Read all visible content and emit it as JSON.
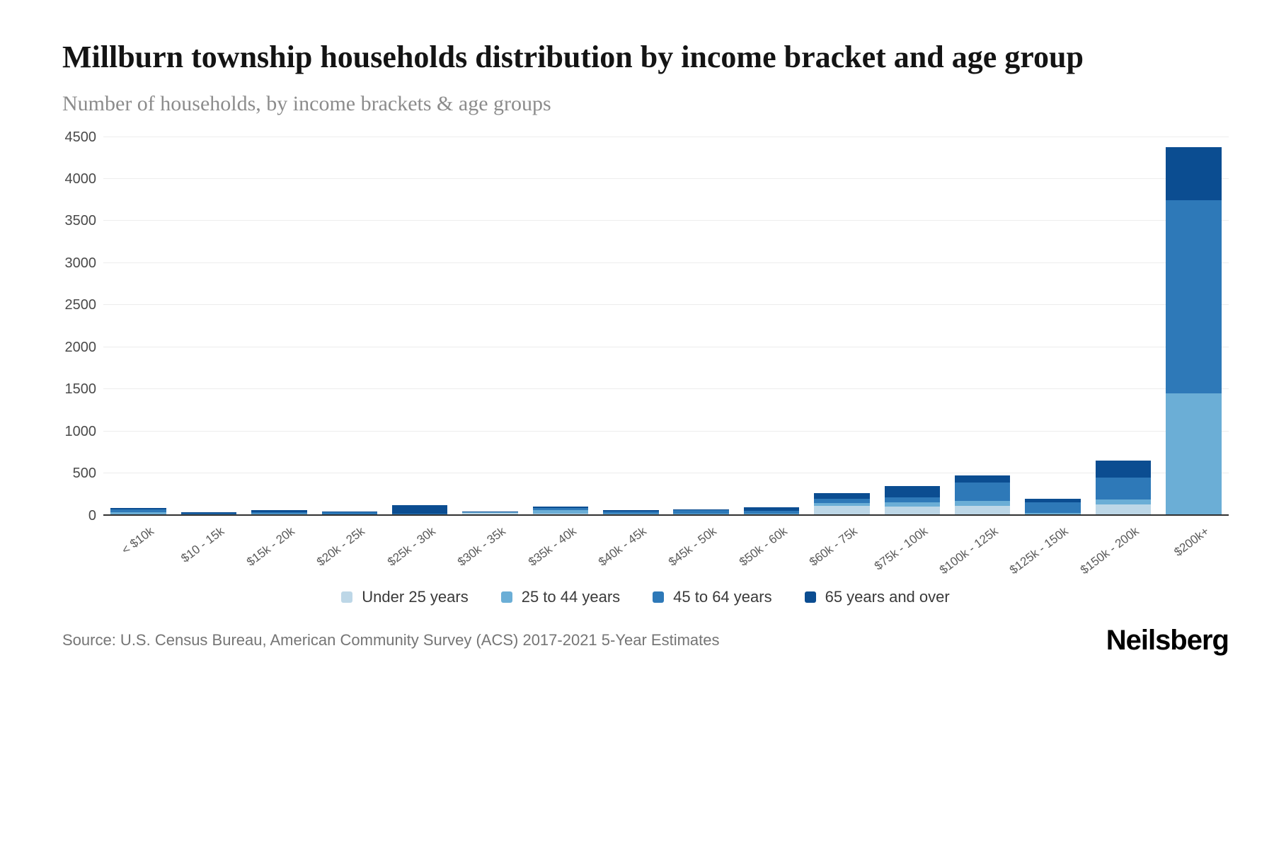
{
  "chart_data": {
    "type": "bar",
    "stacked": true,
    "title": "Millburn township households distribution by income bracket and age group",
    "subtitle": "Number of households, by income brackets & age groups",
    "categories": [
      "< $10k",
      "$10 - 15k",
      "$15k - 20k",
      "$20k - 25k",
      "$25k - 30k",
      "$30k - 35k",
      "$35k - 40k",
      "$40k - 45k",
      "$45k - 50k",
      "$50k - 60k",
      "$60k - 75k",
      "$75k - 100k",
      "$100k - 125k",
      "$125k - 150k",
      "$150k - 200k",
      "$200k+"
    ],
    "series": [
      {
        "name": "Under 25 years",
        "color": "#bdd7e7",
        "values": [
          0,
          0,
          0,
          0,
          0,
          30,
          20,
          0,
          0,
          0,
          115,
          105,
          115,
          0,
          130,
          0
        ]
      },
      {
        "name": "25 to 44 years",
        "color": "#6baed6",
        "values": [
          35,
          10,
          20,
          15,
          10,
          5,
          40,
          20,
          25,
          25,
          35,
          55,
          55,
          30,
          60,
          1450
        ]
      },
      {
        "name": "45 to 64 years",
        "color": "#2e79b8",
        "values": [
          35,
          15,
          20,
          20,
          10,
          5,
          30,
          25,
          35,
          30,
          45,
          55,
          220,
          130,
          265,
          2300
        ]
      },
      {
        "name": "65 years and over",
        "color": "#0b4d91",
        "values": [
          20,
          15,
          20,
          15,
          100,
          5,
          20,
          15,
          15,
          40,
          70,
          135,
          90,
          35,
          200,
          630
        ]
      }
    ],
    "ylabel": "",
    "xlabel": "",
    "ylim": [
      0,
      4500
    ],
    "yticks": [
      0,
      500,
      1000,
      1500,
      2000,
      2500,
      3000,
      3500,
      4000,
      4500
    ],
    "grid": true,
    "legend_position": "bottom"
  },
  "source": "Source: U.S. Census Bureau, American Community Survey (ACS) 2017-2021 5-Year Estimates",
  "brand": "Neilsberg"
}
